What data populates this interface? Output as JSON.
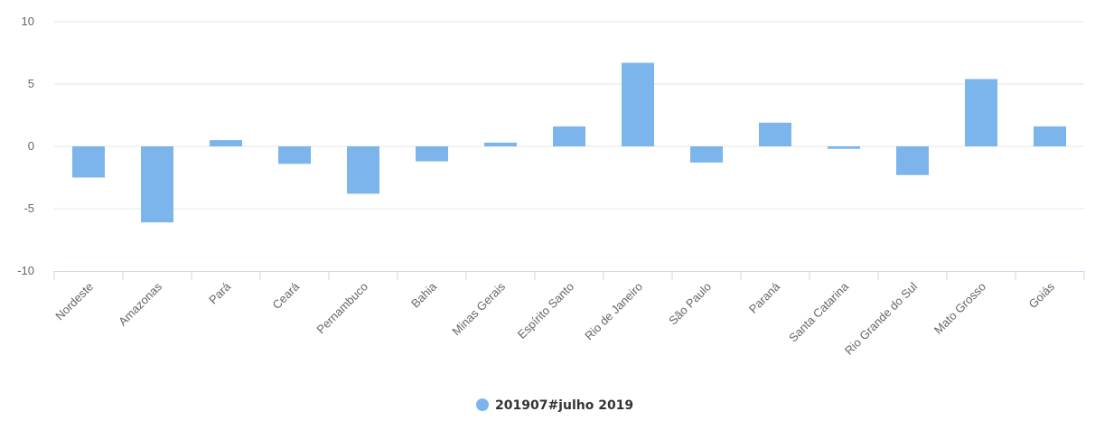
{
  "chart_data": {
    "type": "bar",
    "categories": [
      "Nordeste",
      "Amazonas",
      "Pará",
      "Ceará",
      "Pernambuco",
      "Bahia",
      "Minas Gerais",
      "Espírito Santo",
      "Rio de Janeiro",
      "São Paulo",
      "Paraná",
      "Santa Catarina",
      "Rio Grande do Sul",
      "Mato Grosso",
      "Goiás"
    ],
    "series": [
      {
        "name": "201907#julho 2019",
        "values": [
          -2.5,
          -6.1,
          0.5,
          -1.4,
          -3.8,
          -1.2,
          0.3,
          1.6,
          6.7,
          -1.3,
          1.9,
          -0.2,
          -2.3,
          5.4,
          1.6
        ]
      }
    ],
    "title": "",
    "xlabel": "",
    "ylabel": "",
    "ylim": [
      -10,
      10
    ],
    "yticks": [
      "10",
      "5",
      "0",
      "-5",
      "-10"
    ],
    "grid": true,
    "legend_position": "bottom-center",
    "colors": {
      "bar": "#7cb5ec",
      "grid": "#e6e6e6",
      "axis": "#ccd6eb",
      "text": "#666666"
    }
  }
}
